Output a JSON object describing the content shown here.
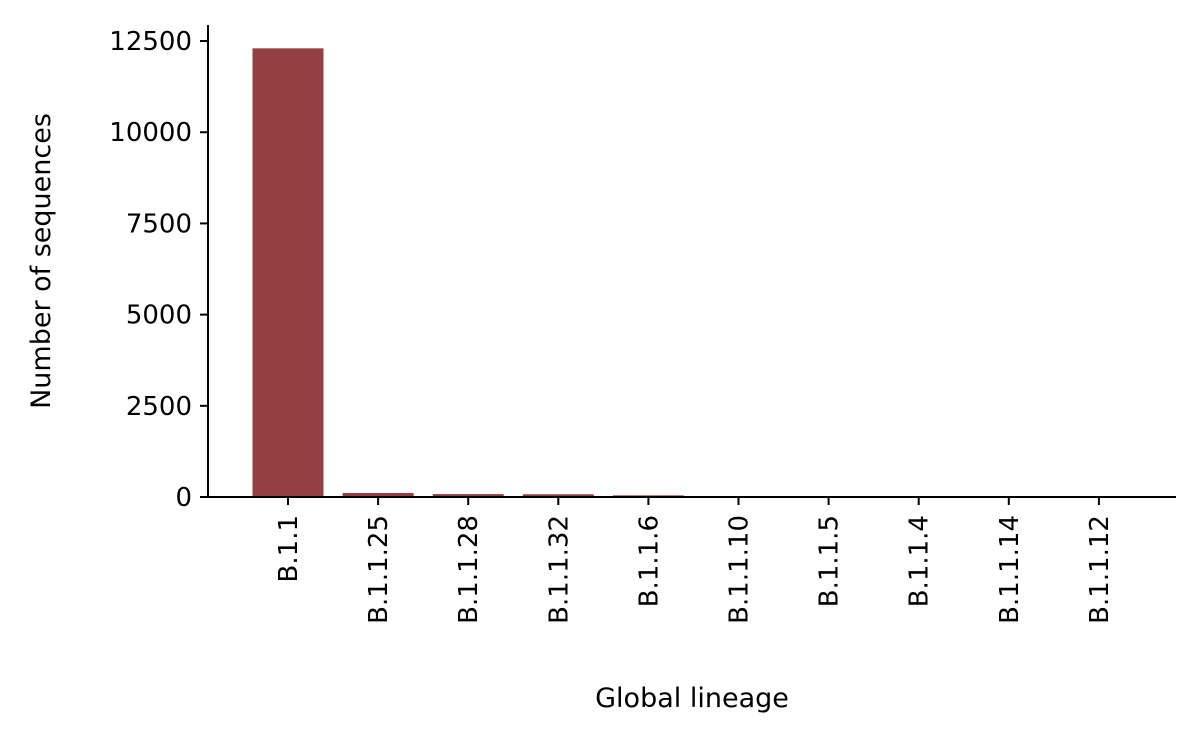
{
  "chart_data": {
    "type": "bar",
    "title": "",
    "xlabel": "Global lineage",
    "ylabel": "Number of sequences",
    "categories": [
      "B.1.1",
      "B.1.1.25",
      "B.1.1.28",
      "B.1.1.32",
      "B.1.1.6",
      "B.1.1.10",
      "B.1.1.5",
      "B.1.1.4",
      "B.1.1.14",
      "B.1.1.12"
    ],
    "values": [
      12300,
      110,
      80,
      75,
      45,
      12,
      10,
      8,
      7,
      6
    ],
    "ylim": [
      0,
      12940
    ],
    "yticks": [
      0,
      2500,
      5000,
      7500,
      10000,
      12500
    ],
    "bar_color": "#943f42",
    "grid": false,
    "legend": "none"
  }
}
